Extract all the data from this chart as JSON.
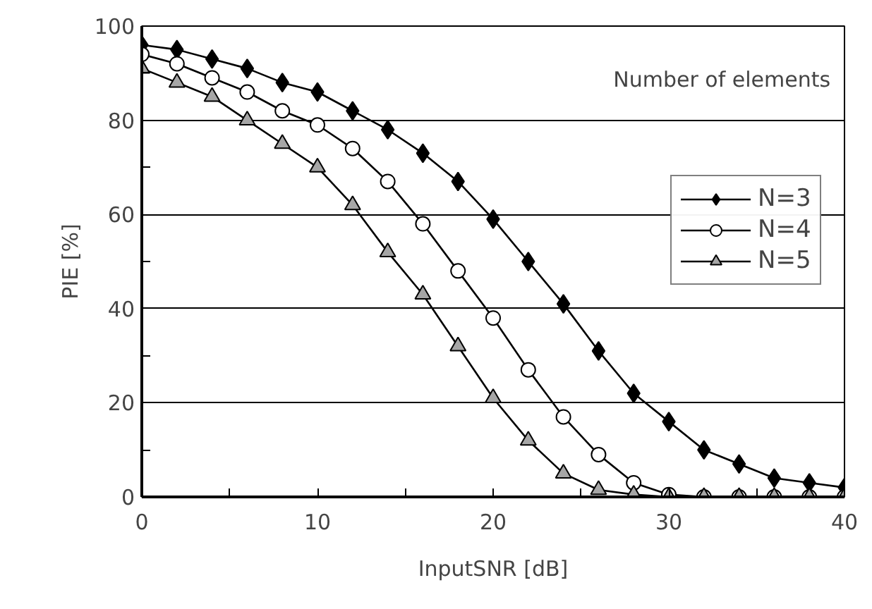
{
  "chart_data": {
    "type": "line",
    "xlabel": "InputSNR [dB]",
    "ylabel": "PIE [%]",
    "legend_title": "Number of elements",
    "x": [
      0,
      2,
      4,
      6,
      8,
      10,
      12,
      14,
      16,
      18,
      20,
      22,
      24,
      26,
      28,
      30,
      32,
      34,
      36,
      38,
      40
    ],
    "series": [
      {
        "name": "N=3",
        "color": "#000000",
        "marker": "diamond",
        "values": [
          96,
          95,
          93,
          91,
          88,
          86,
          82,
          78,
          73,
          67,
          59,
          50,
          41,
          31,
          22,
          16,
          10,
          7,
          4,
          3,
          2
        ]
      },
      {
        "name": "N=4",
        "color": "#ffffff",
        "marker": "circle",
        "values": [
          94,
          92,
          89,
          86,
          82,
          79,
          74,
          67,
          58,
          48,
          38,
          27,
          17,
          9,
          3,
          0.5,
          0,
          0,
          0,
          0,
          0
        ]
      },
      {
        "name": "N=5",
        "color": "#a6a6a6",
        "marker": "triangle",
        "values": [
          91,
          88,
          85,
          80,
          75,
          70,
          62,
          52,
          43,
          32,
          21,
          12,
          5,
          1.5,
          0.5,
          0,
          0,
          0,
          0,
          0,
          0
        ]
      }
    ],
    "xlim": [
      0,
      40
    ],
    "xticks": [
      0,
      {
        "value": 5,
        "label": null
      },
      10,
      {
        "value": 15,
        "label": null
      },
      20,
      {
        "value": 25,
        "label": null
      },
      30,
      {
        "value": 35,
        "label": null
      },
      40
    ],
    "ylim": [
      0,
      100
    ],
    "yticks": [
      0,
      {
        "value": 10,
        "label": null
      },
      20,
      {
        "value": 30,
        "label": null
      },
      40,
      {
        "value": 50,
        "label": null
      },
      60,
      {
        "value": 70,
        "label": null
      },
      80,
      {
        "value": 90,
        "label": null
      },
      100
    ],
    "grid": "y",
    "legend": "top right",
    "line_style": "solid"
  }
}
